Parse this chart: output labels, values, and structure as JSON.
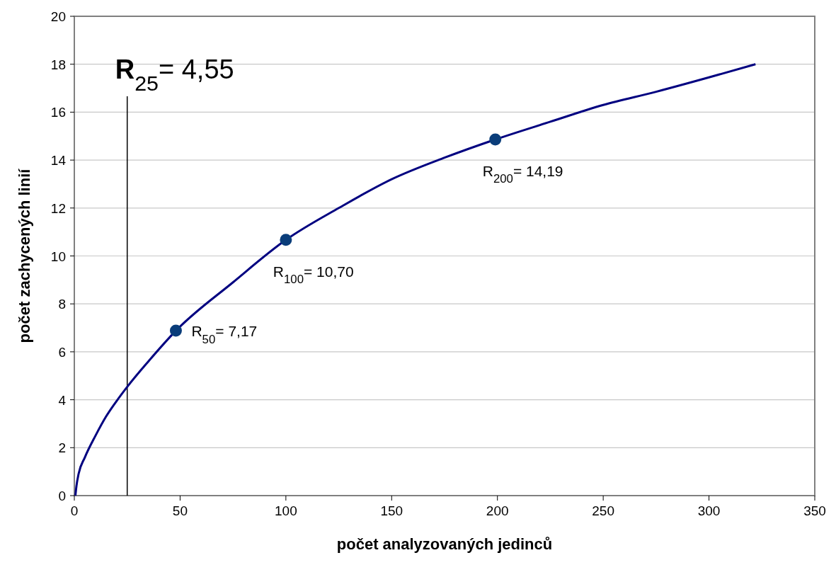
{
  "chart_data": {
    "type": "line",
    "xlabel": "počet analyzovaných jedinců",
    "ylabel": "počet zachycených linií",
    "xlim": [
      0,
      350
    ],
    "ylim": [
      0,
      20
    ],
    "xticks": [
      0,
      50,
      100,
      150,
      200,
      250,
      300,
      350
    ],
    "yticks": [
      0,
      2,
      4,
      6,
      8,
      10,
      12,
      14,
      16,
      18,
      20
    ],
    "grid": "y",
    "marker": "none",
    "line_style": "solid",
    "series": [
      {
        "color": "#000080",
        "x": [
          0.5,
          1,
          2,
          5,
          10,
          15,
          20,
          25,
          35,
          48,
          75,
          100,
          125,
          150,
          175,
          199,
          225,
          250,
          275,
          300,
          322
        ],
        "values": [
          0,
          0.4,
          0.9,
          1.6,
          2.5,
          3.3,
          3.95,
          4.54,
          5.6,
          6.88,
          8.9,
          10.67,
          12.0,
          13.2,
          14.1,
          14.86,
          15.6,
          16.3,
          16.85,
          17.45,
          18.0
        ]
      },
      {
        "type": "scatter",
        "color": "#0a3d7a",
        "marker": "circle",
        "x": [
          48,
          100,
          199
        ],
        "values": [
          6.88,
          10.67,
          14.86
        ]
      }
    ],
    "ref_lines": [
      {
        "axis": "x",
        "value": 25,
        "label": "R$_{25}$= 4,55",
        "color": "#000000"
      }
    ],
    "annotations": [
      {
        "text": "R$_{50}$= 7,17",
        "x": 48,
        "y": 6.88
      },
      {
        "text": "R$_{100}$= 10,70",
        "x": 100,
        "y": 10.67
      },
      {
        "text": "R$_{200}$= 14,19",
        "x": 199,
        "y": 14.86
      }
    ]
  }
}
